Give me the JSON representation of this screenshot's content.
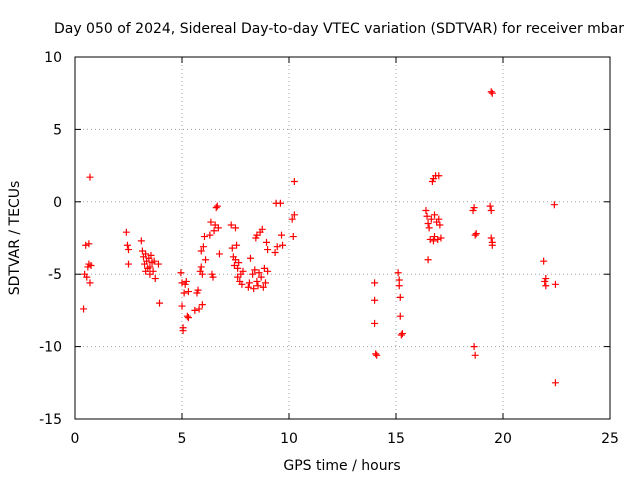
{
  "chart_data": {
    "type": "scatter",
    "title": "Day 050 of 2024, Sidereal Day-to-day VTEC variation (SDTVAR) for receiver mbar",
    "xlabel": "GPS time / hours",
    "ylabel": "SDTVAR / TECUs",
    "xlim": [
      0,
      25
    ],
    "ylim": [
      -15,
      10
    ],
    "xticks": [
      0,
      5,
      10,
      15,
      20,
      25
    ],
    "yticks": [
      -15,
      -10,
      -5,
      0,
      5,
      10
    ],
    "xtick_labels": [
      "0",
      "5",
      "10",
      "15",
      "20",
      "25"
    ],
    "ytick_labels": [
      "-15",
      "-10",
      "-5",
      "0",
      "5",
      "10"
    ],
    "grid": true,
    "marker": "plus",
    "marker_color": "#ff0000",
    "series": [
      {
        "name": "SDTVAR",
        "points": [
          [
            0.4,
            -7.4
          ],
          [
            0.45,
            -5.0
          ],
          [
            0.5,
            -3.0
          ],
          [
            0.55,
            -5.2
          ],
          [
            0.6,
            -4.5
          ],
          [
            0.65,
            -4.3
          ],
          [
            0.65,
            -2.9
          ],
          [
            0.7,
            -5.6
          ],
          [
            0.7,
            1.7
          ],
          [
            0.75,
            -4.4
          ],
          [
            2.4,
            -2.1
          ],
          [
            2.45,
            -3.0
          ],
          [
            2.5,
            -3.3
          ],
          [
            2.5,
            -4.3
          ],
          [
            3.1,
            -2.7
          ],
          [
            3.15,
            -3.4
          ],
          [
            3.2,
            -3.8
          ],
          [
            3.25,
            -4.3
          ],
          [
            3.3,
            -4.8
          ],
          [
            3.3,
            -3.6
          ],
          [
            3.35,
            -4.1
          ],
          [
            3.4,
            -4.6
          ],
          [
            3.45,
            -3.9
          ],
          [
            3.5,
            -4.5
          ],
          [
            3.5,
            -5.0
          ],
          [
            3.55,
            -3.7
          ],
          [
            3.6,
            -4.2
          ],
          [
            3.65,
            -4.8
          ],
          [
            3.7,
            -4.1
          ],
          [
            3.75,
            -5.3
          ],
          [
            3.9,
            -4.3
          ],
          [
            3.95,
            -7.0
          ],
          [
            4.95,
            -4.9
          ],
          [
            5.0,
            -5.6
          ],
          [
            5.0,
            -7.2
          ],
          [
            5.05,
            -8.7
          ],
          [
            5.05,
            -8.9
          ],
          [
            5.1,
            -6.3
          ],
          [
            5.15,
            -5.7
          ],
          [
            5.2,
            -5.5
          ],
          [
            5.25,
            -7.9
          ],
          [
            5.3,
            -8.0
          ],
          [
            5.3,
            -6.2
          ],
          [
            5.6,
            -7.5
          ],
          [
            5.7,
            -6.3
          ],
          [
            5.75,
            -6.1
          ],
          [
            5.8,
            -7.4
          ],
          [
            5.85,
            -4.8
          ],
          [
            5.9,
            -4.5
          ],
          [
            5.9,
            -3.4
          ],
          [
            5.95,
            -5.0
          ],
          [
            5.95,
            -7.1
          ],
          [
            6.0,
            -3.1
          ],
          [
            6.05,
            -2.4
          ],
          [
            6.1,
            -4.0
          ],
          [
            6.3,
            -2.3
          ],
          [
            6.35,
            -1.4
          ],
          [
            6.4,
            -5.0
          ],
          [
            6.45,
            -5.2
          ],
          [
            6.5,
            -2.0
          ],
          [
            6.55,
            -1.6
          ],
          [
            6.6,
            -0.4
          ],
          [
            6.65,
            -0.3
          ],
          [
            6.7,
            -1.8
          ],
          [
            6.75,
            -3.6
          ],
          [
            7.3,
            -1.6
          ],
          [
            7.35,
            -3.2
          ],
          [
            7.4,
            -3.8
          ],
          [
            7.45,
            -4.4
          ],
          [
            7.5,
            -1.8
          ],
          [
            7.5,
            -4.0
          ],
          [
            7.55,
            -3.0
          ],
          [
            7.6,
            -4.6
          ],
          [
            7.6,
            -5.2
          ],
          [
            7.65,
            -4.2
          ],
          [
            7.7,
            -5.5
          ],
          [
            7.75,
            -5.0
          ],
          [
            7.8,
            -5.7
          ],
          [
            7.85,
            -4.8
          ],
          [
            8.1,
            -5.9
          ],
          [
            8.15,
            -5.6
          ],
          [
            8.2,
            -3.9
          ],
          [
            8.3,
            -5.0
          ],
          [
            8.35,
            -6.0
          ],
          [
            8.4,
            -4.7
          ],
          [
            8.45,
            -2.5
          ],
          [
            8.5,
            -5.5
          ],
          [
            8.5,
            -2.3
          ],
          [
            8.55,
            -5.8
          ],
          [
            8.6,
            -4.9
          ],
          [
            8.65,
            -2.1
          ],
          [
            8.7,
            -5.2
          ],
          [
            8.75,
            -1.9
          ],
          [
            8.8,
            -5.9
          ],
          [
            8.85,
            -4.6
          ],
          [
            8.9,
            -5.6
          ],
          [
            8.95,
            -2.8
          ],
          [
            9.0,
            -3.3
          ],
          [
            9.0,
            -4.8
          ],
          [
            9.35,
            -3.5
          ],
          [
            9.4,
            -0.1
          ],
          [
            9.45,
            -3.1
          ],
          [
            9.6,
            -0.1
          ],
          [
            9.65,
            -2.3
          ],
          [
            9.7,
            -3.0
          ],
          [
            10.15,
            -1.2
          ],
          [
            10.2,
            -2.4
          ],
          [
            10.25,
            -0.9
          ],
          [
            10.25,
            1.4
          ],
          [
            14.0,
            -5.6
          ],
          [
            14.0,
            -6.8
          ],
          [
            14.0,
            -8.4
          ],
          [
            14.05,
            -10.5
          ],
          [
            14.1,
            -10.6
          ],
          [
            15.1,
            -4.9
          ],
          [
            15.15,
            -5.4
          ],
          [
            15.15,
            -5.8
          ],
          [
            15.2,
            -6.6
          ],
          [
            15.2,
            -7.9
          ],
          [
            15.25,
            -9.2
          ],
          [
            15.3,
            -9.1
          ],
          [
            16.4,
            -0.6
          ],
          [
            16.45,
            -1.0
          ],
          [
            16.5,
            -1.5
          ],
          [
            16.5,
            -4.0
          ],
          [
            16.55,
            -1.8
          ],
          [
            16.6,
            -2.6
          ],
          [
            16.65,
            -1.2
          ],
          [
            16.7,
            1.4
          ],
          [
            16.75,
            -2.7
          ],
          [
            16.75,
            1.6
          ],
          [
            16.8,
            -0.9
          ],
          [
            16.8,
            -2.4
          ],
          [
            16.85,
            1.8
          ],
          [
            16.9,
            -1.4
          ],
          [
            16.95,
            -2.6
          ],
          [
            17.0,
            1.8
          ],
          [
            17.0,
            -1.2
          ],
          [
            17.05,
            -1.6
          ],
          [
            17.1,
            -2.5
          ],
          [
            18.6,
            -0.6
          ],
          [
            18.65,
            -0.4
          ],
          [
            18.7,
            -2.3
          ],
          [
            18.65,
            -10.0
          ],
          [
            18.7,
            -10.6
          ],
          [
            18.75,
            -2.2
          ],
          [
            19.4,
            -0.3
          ],
          [
            19.45,
            -0.6
          ],
          [
            19.45,
            -2.5
          ],
          [
            19.5,
            -2.8
          ],
          [
            19.5,
            -3.0
          ],
          [
            19.45,
            7.6
          ],
          [
            19.5,
            7.5
          ],
          [
            21.9,
            -4.1
          ],
          [
            21.95,
            -5.5
          ],
          [
            22.0,
            -5.3
          ],
          [
            22.0,
            -5.8
          ],
          [
            22.4,
            -0.2
          ],
          [
            22.45,
            -5.7
          ],
          [
            22.45,
            -12.5
          ]
        ]
      }
    ]
  }
}
